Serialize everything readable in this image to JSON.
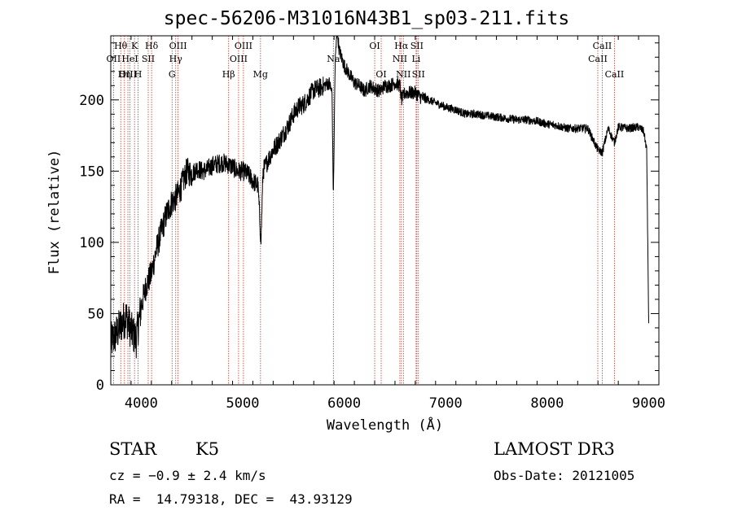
{
  "colors": {
    "axis": "#000000",
    "spectrum": "#000000",
    "line_marker": "#c0392b",
    "background": "#ffffff"
  },
  "chart_data": {
    "type": "line",
    "title": "spec-56206-M31016N43B1_sp03-211.fits",
    "xlabel": "Wavelength (Å)",
    "ylabel": "Flux (relative)",
    "xlim": [
      3700,
      9100
    ],
    "ylim": [
      0,
      245
    ],
    "xticks": [
      4000,
      5000,
      6000,
      7000,
      8000,
      9000
    ],
    "yticks": [
      0,
      50,
      100,
      150,
      200
    ],
    "grid": false,
    "series": [
      {
        "name": "spectrum",
        "x": [
          3700,
          3750,
          3800,
          3850,
          3900,
          3950,
          4000,
          4050,
          4100,
          4150,
          4200,
          4250,
          4300,
          4350,
          4400,
          4450,
          4500,
          4550,
          4600,
          4650,
          4700,
          4750,
          4800,
          4850,
          4900,
          4950,
          5000,
          5050,
          5100,
          5150,
          5180,
          5200,
          5250,
          5300,
          5350,
          5400,
          5450,
          5500,
          5550,
          5600,
          5650,
          5700,
          5750,
          5800,
          5850,
          5880,
          5893,
          5910,
          5930,
          5950,
          6000,
          6050,
          6100,
          6150,
          6200,
          6250,
          6300,
          6350,
          6400,
          6450,
          6500,
          6550,
          6563,
          6600,
          6650,
          6700,
          6750,
          6800,
          6900,
          7000,
          7100,
          7200,
          7300,
          7400,
          7500,
          7600,
          7700,
          7800,
          7900,
          8000,
          8100,
          8200,
          8300,
          8400,
          8498,
          8542,
          8600,
          8662,
          8700,
          8800,
          8900,
          8950,
          8980,
          9000
        ],
        "y": [
          30,
          35,
          42,
          48,
          38,
          32,
          55,
          70,
          78,
          95,
          108,
          120,
          128,
          132,
          140,
          150,
          148,
          152,
          150,
          151,
          154,
          155,
          156,
          155,
          153,
          150,
          150,
          148,
          143,
          140,
          100,
          150,
          158,
          165,
          170,
          176,
          182,
          190,
          195,
          197,
          202,
          207,
          208,
          210,
          212,
          205,
          130,
          225,
          250,
          235,
          224,
          218,
          212,
          210,
          206,
          210,
          208,
          206,
          210,
          210,
          212,
          210,
          200,
          205,
          205,
          205,
          202,
          201,
          198,
          195,
          193,
          190,
          190,
          189,
          188,
          187,
          186,
          186,
          185,
          183,
          182,
          180,
          180,
          180,
          165,
          163,
          180,
          170,
          181,
          180,
          181,
          178,
          165,
          40
        ]
      }
    ],
    "lines": [
      {
        "label": "Hθ",
        "wave": 3798,
        "row": 0
      },
      {
        "label": "OII",
        "wave": 3727,
        "row": 1
      },
      {
        "label": "OIII",
        "wave": 3869,
        "row": 2
      },
      {
        "label": "K",
        "wave": 3934,
        "row": 0
      },
      {
        "label": "HeI",
        "wave": 3889,
        "row": 1
      },
      {
        "label": "Hη",
        "wave": 3835,
        "row": 2
      },
      {
        "label": "SII",
        "wave": 4069,
        "row": 1
      },
      {
        "label": "H",
        "wave": 3969,
        "row": 2
      },
      {
        "label": "Hδ",
        "wave": 4102,
        "row": 0
      },
      {
        "label": "OIII",
        "wave": 4363,
        "row": 0
      },
      {
        "label": "Hγ",
        "wave": 4340,
        "row": 1
      },
      {
        "label": "G",
        "wave": 4304,
        "row": 2
      },
      {
        "label": "OIII",
        "wave": 5007,
        "row": 0
      },
      {
        "label": "OIII",
        "wave": 4959,
        "row": 1
      },
      {
        "label": "Hβ",
        "wave": 4861,
        "row": 2
      },
      {
        "label": "Mg",
        "wave": 5175,
        "row": 2
      },
      {
        "label": "Na",
        "wave": 5893,
        "row": 1
      },
      {
        "label": "OI",
        "wave": 6300,
        "row": 0
      },
      {
        "label": "OI",
        "wave": 6364,
        "row": 2
      },
      {
        "label": "Hα",
        "wave": 6563,
        "row": 0
      },
      {
        "label": "SII",
        "wave": 6716,
        "row": 0
      },
      {
        "label": "NII",
        "wave": 6548,
        "row": 1
      },
      {
        "label": "Li",
        "wave": 6708,
        "row": 1
      },
      {
        "label": "NII",
        "wave": 6583,
        "row": 2
      },
      {
        "label": "SII",
        "wave": 6731,
        "row": 2
      },
      {
        "label": "CaII",
        "wave": 8542,
        "row": 0
      },
      {
        "label": "CaII",
        "wave": 8498,
        "row": 1
      },
      {
        "label": "CaII",
        "wave": 8662,
        "row": 2
      }
    ]
  },
  "info": {
    "object_class": "STAR",
    "subclass": "K5",
    "survey": "LAMOST DR3",
    "cz": "cz = −0.9 ± 2.4 km/s",
    "obs_date": "Obs-Date: 20121005",
    "coords": "RA =  14.79318, DEC =  43.93129"
  }
}
